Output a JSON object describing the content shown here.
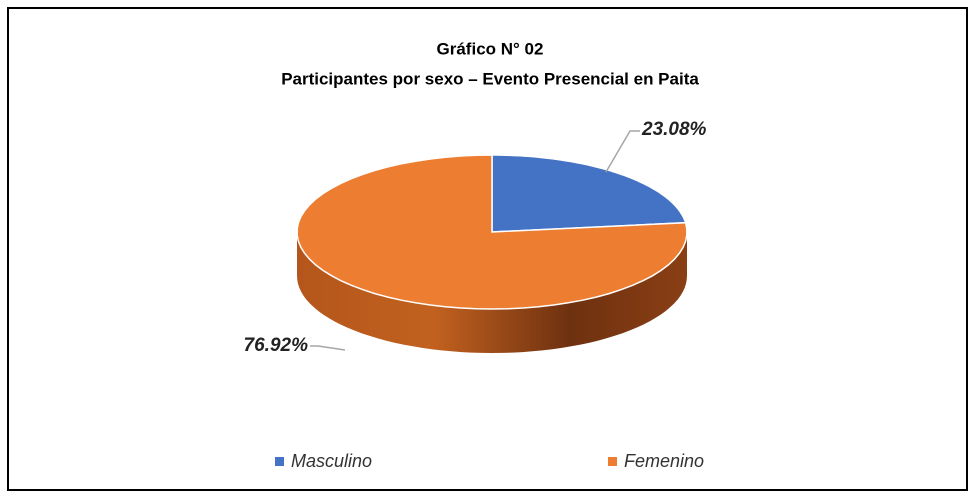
{
  "chart_data": {
    "type": "pie",
    "title": "Gráfico N° 02",
    "subtitle": "Participantes por sexo – Evento Presencial en Paita",
    "categories": [
      "Masculino",
      "Femenino"
    ],
    "values": [
      23.08,
      76.92
    ],
    "value_labels": [
      "23.08%",
      "76.92%"
    ],
    "colors": [
      "#4472c4",
      "#ed7d31"
    ],
    "legend": "bottom"
  }
}
